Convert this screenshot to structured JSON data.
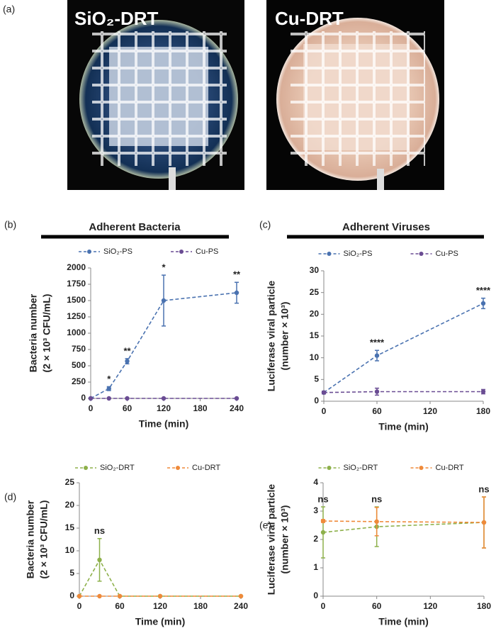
{
  "figure_a": {
    "panel_label": "(a)",
    "images": [
      {
        "caption": "SiO₂-DRT"
      },
      {
        "caption": "Cu-DRT"
      }
    ]
  },
  "chart_data": [
    {
      "type": "line",
      "panel_label": "(b)",
      "title": "Adherent Bacteria",
      "y_label": [
        "Bacteria number",
        "(2 × 10³ CFU/mL)"
      ],
      "x_label": "Time (min)",
      "x": [
        0,
        30,
        60,
        120,
        240
      ],
      "xlim": [
        0,
        240
      ],
      "xticks": [
        0,
        60,
        120,
        180,
        240
      ],
      "ylim": [
        0,
        2000
      ],
      "yticks": [
        0,
        250,
        500,
        750,
        1000,
        1250,
        1500,
        1750,
        2000
      ],
      "series": [
        {
          "name": "SiO₂-PS",
          "color": "#4a72b0",
          "values": [
            0,
            150,
            570,
            1500,
            1620
          ],
          "errors": [
            0,
            30,
            40,
            390,
            160
          ]
        },
        {
          "name": "Cu-PS",
          "color": "#6a4c93",
          "values": [
            0,
            0,
            0,
            0,
            0
          ],
          "errors": [
            0,
            0,
            0,
            0,
            0
          ]
        }
      ],
      "annotations": [
        {
          "x": 30,
          "text": "*"
        },
        {
          "x": 60,
          "text": "**"
        },
        {
          "x": 120,
          "text": "*"
        },
        {
          "x": 240,
          "text": "**"
        }
      ]
    },
    {
      "type": "line",
      "panel_label": "(c)",
      "title": "Adherent Viruses",
      "y_label": [
        "Luciferase viral particle",
        "(number × 10³)"
      ],
      "x_label": "Time (min)",
      "x": [
        0,
        60,
        180
      ],
      "xlim": [
        0,
        180
      ],
      "xticks": [
        0,
        60,
        120,
        180
      ],
      "ylim": [
        0,
        30
      ],
      "yticks": [
        0,
        5,
        10,
        15,
        20,
        25,
        30
      ],
      "series": [
        {
          "name": "SiO₂-PS",
          "color": "#4a72b0",
          "values": [
            2,
            10.5,
            22.5
          ],
          "errors": [
            0.3,
            1.2,
            1.2
          ]
        },
        {
          "name": "Cu-PS",
          "color": "#6a4c93",
          "values": [
            2,
            2.2,
            2.2
          ],
          "errors": [
            0.3,
            0.8,
            0.5
          ]
        }
      ],
      "annotations": [
        {
          "x": 60,
          "text": "****"
        },
        {
          "x": 180,
          "text": "****"
        }
      ]
    },
    {
      "type": "line",
      "panel_label": "(d)",
      "y_label": [
        "Bacteria number",
        "(2 × 10³ CFU/mL)"
      ],
      "x_label": "Time (min)",
      "x": [
        0,
        30,
        60,
        120,
        240
      ],
      "xlim": [
        0,
        240
      ],
      "xticks": [
        0,
        60,
        120,
        180,
        240
      ],
      "ylim": [
        0,
        25
      ],
      "yticks": [
        0,
        5,
        10,
        15,
        20,
        25
      ],
      "series": [
        {
          "name": "SiO₂-DRT",
          "color": "#8db04a",
          "values": [
            0,
            8,
            0,
            0,
            0
          ],
          "errors": [
            0,
            4.7,
            0,
            0,
            0
          ]
        },
        {
          "name": "Cu-DRT",
          "color": "#ef8a3a",
          "values": [
            0,
            0,
            0,
            0,
            0
          ],
          "errors": [
            0,
            0,
            0,
            0,
            0
          ]
        }
      ],
      "annotations": [
        {
          "x": 30,
          "text": "ns"
        }
      ]
    },
    {
      "type": "line",
      "panel_label": "(e)",
      "y_label": [
        "Luciferase viral particle",
        "(number × 10³)"
      ],
      "x_label": "Time (min)",
      "x": [
        0,
        60,
        180
      ],
      "xlim": [
        0,
        180
      ],
      "xticks": [
        0,
        60,
        120,
        180
      ],
      "ylim": [
        0,
        4
      ],
      "yticks": [
        0,
        1,
        2,
        3,
        4
      ],
      "series": [
        {
          "name": "SiO₂-DRT",
          "color": "#8db04a",
          "values": [
            2.25,
            2.45,
            2.6
          ],
          "errors": [
            0.9,
            0.7,
            0.9
          ]
        },
        {
          "name": "Cu-DRT",
          "color": "#ef8a3a",
          "values": [
            2.65,
            2.63,
            2.6
          ],
          "errors": [
            0.05,
            0.5,
            0.9
          ]
        }
      ],
      "annotations": [
        {
          "x": 0,
          "text": "ns"
        },
        {
          "x": 60,
          "text": "ns"
        },
        {
          "x": 180,
          "text": "ns"
        }
      ]
    }
  ]
}
